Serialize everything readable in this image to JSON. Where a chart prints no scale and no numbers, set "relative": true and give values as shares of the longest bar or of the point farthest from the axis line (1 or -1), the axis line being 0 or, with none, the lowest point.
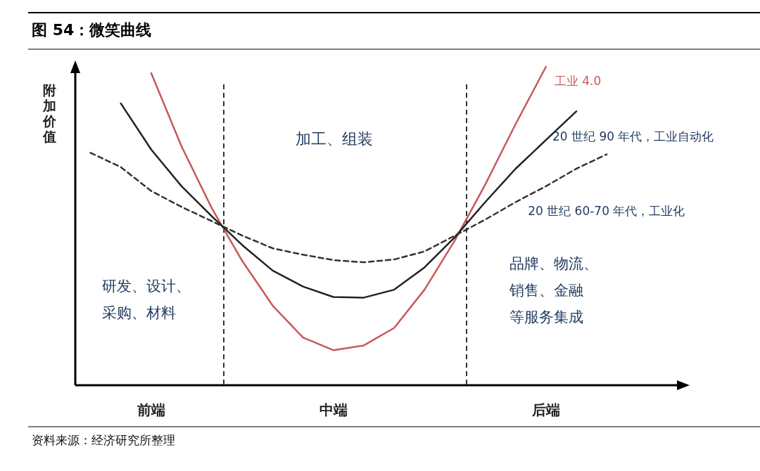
{
  "chart_data": {
    "type": "line",
    "title": "图 54：微笑曲线",
    "ylabel": "附加价值",
    "relative": true,
    "categories": [
      null,
      null,
      "前端",
      null,
      null,
      null,
      null,
      null,
      "中端",
      null,
      null,
      null,
      null,
      null,
      null,
      "后端",
      null,
      null,
      null,
      null
    ],
    "series": [
      {
        "name": "工业 4.0",
        "color": "#c8585a",
        "line_style": "solid",
        "values": [
          null,
          null,
          0.98,
          0.75,
          0.555,
          0.39,
          0.25,
          0.15,
          0.11,
          0.125,
          0.18,
          0.3,
          0.455,
          0.63,
          0.82,
          1.0,
          null,
          null,
          null,
          null
        ]
      },
      {
        "name": "20 世纪 90 年代，工业自动化",
        "color": "#222222",
        "line_style": "solid",
        "values": [
          null,
          0.885,
          0.74,
          0.625,
          0.53,
          0.44,
          0.36,
          0.31,
          0.277,
          0.275,
          0.3,
          0.37,
          0.465,
          0.575,
          0.68,
          0.77,
          0.86,
          null,
          null,
          null
        ]
      },
      {
        "name": "20 世纪 60-70 年代，工业化",
        "color": "#333333",
        "line_style": "dashed",
        "values": [
          0.73,
          0.685,
          0.61,
          0.56,
          0.515,
          0.47,
          0.43,
          0.41,
          0.393,
          0.386,
          0.395,
          0.42,
          0.47,
          0.52,
          0.575,
          0.625,
          0.68,
          0.725,
          null,
          null
        ]
      }
    ],
    "annotations": [
      "加工、组装",
      "研发、设计、",
      "采购、材料",
      "品牌、物流、",
      "销售、金融",
      "等服务集成",
      "资料来源：经济研究所整理"
    ]
  }
}
